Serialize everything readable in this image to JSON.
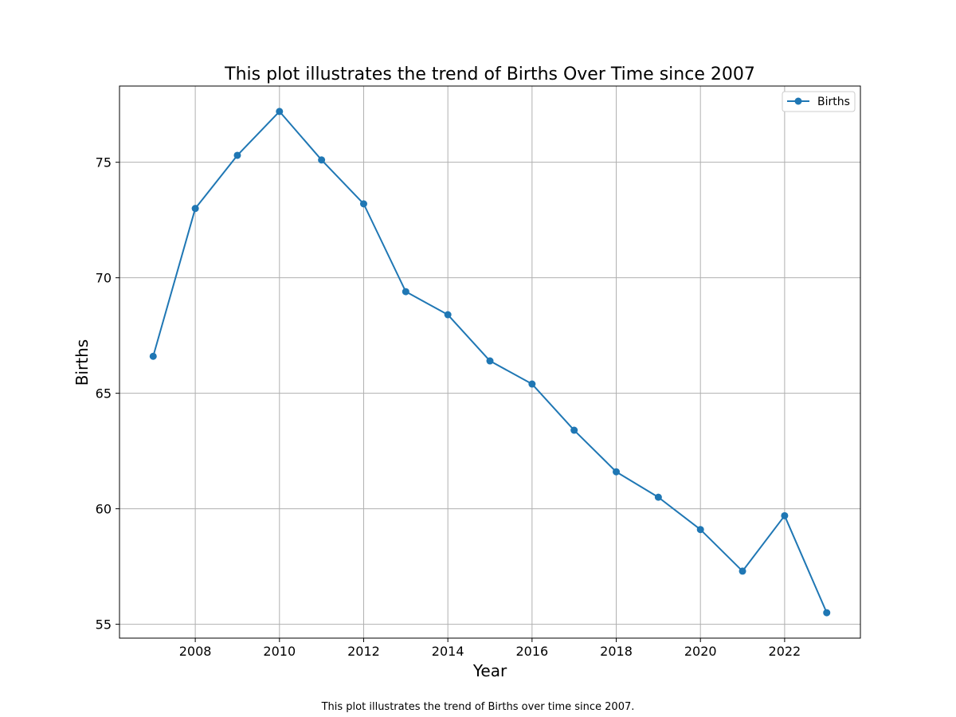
{
  "chart_data": {
    "type": "line",
    "title": "This plot illustrates the trend of Births Over Time since 2007",
    "xlabel": "Year",
    "ylabel": "Births",
    "caption": "This plot illustrates the trend of Births over time since 2007.",
    "x": [
      2007,
      2008,
      2009,
      2010,
      2011,
      2012,
      2013,
      2014,
      2015,
      2016,
      2017,
      2018,
      2019,
      2020,
      2021,
      2022,
      2023
    ],
    "series": [
      {
        "name": "Births",
        "color": "#1f77b4",
        "values": [
          66.6,
          73.0,
          75.3,
          77.2,
          75.1,
          73.2,
          69.4,
          68.4,
          66.4,
          65.4,
          63.4,
          61.6,
          60.5,
          59.1,
          57.3,
          59.7,
          55.5
        ]
      }
    ],
    "xlim": [
      2006.2,
      2023.8
    ],
    "ylim": [
      54.4,
      78.3
    ],
    "xticks": [
      2008,
      2010,
      2012,
      2014,
      2016,
      2018,
      2020,
      2022
    ],
    "yticks": [
      55,
      60,
      65,
      70,
      75
    ],
    "grid": true,
    "legend_position": "top-right"
  }
}
